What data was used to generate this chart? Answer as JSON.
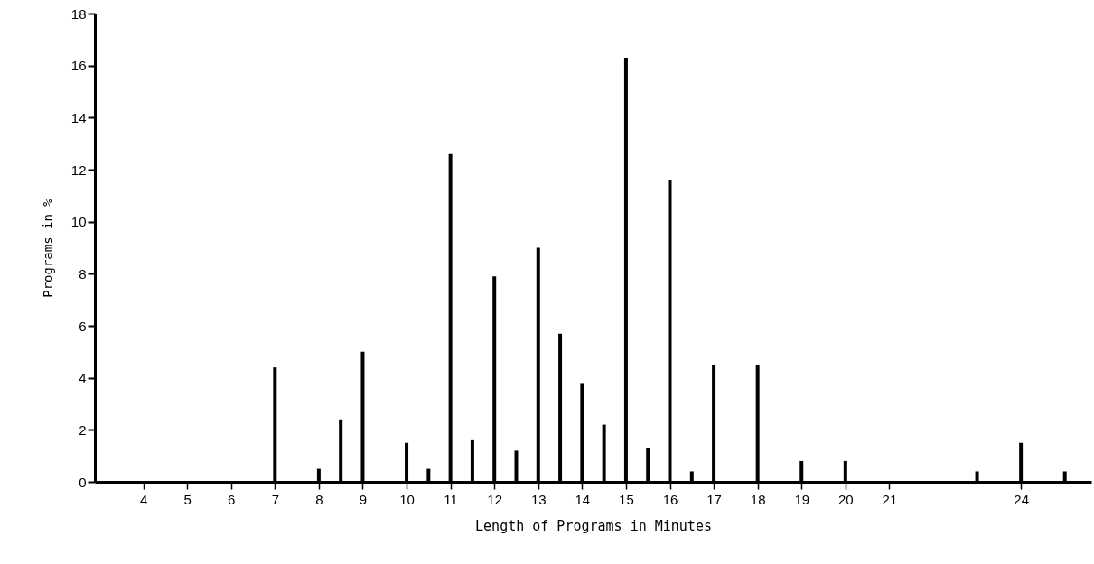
{
  "chart_data": {
    "type": "bar",
    "xlabel": "Length of Programs in Minutes",
    "ylabel": "Programs in %",
    "x": [
      7,
      8,
      8.5,
      9,
      10,
      10.5,
      11,
      11.5,
      12,
      12.5,
      13,
      13.5,
      14,
      14.5,
      15,
      15.5,
      16,
      16.5,
      17,
      18,
      19,
      20,
      23,
      24,
      25
    ],
    "values": [
      4.4,
      0.5,
      2.4,
      5.0,
      1.5,
      0.5,
      12.6,
      1.6,
      7.9,
      1.2,
      9.0,
      5.7,
      3.8,
      2.2,
      16.3,
      1.3,
      11.6,
      0.4,
      4.5,
      4.5,
      0.8,
      0.8,
      0.4,
      1.5,
      0.4
    ],
    "color": "#000000",
    "xlim": [
      3,
      25.5
    ],
    "xticks": [
      4,
      5,
      6,
      7,
      8,
      9,
      10,
      11,
      12,
      13,
      14,
      15,
      16,
      17,
      18,
      19,
      20,
      21,
      24
    ],
    "ylim": [
      0,
      18
    ],
    "yticks": [
      0,
      2,
      4,
      6,
      8,
      10,
      12,
      14,
      16,
      18
    ]
  }
}
